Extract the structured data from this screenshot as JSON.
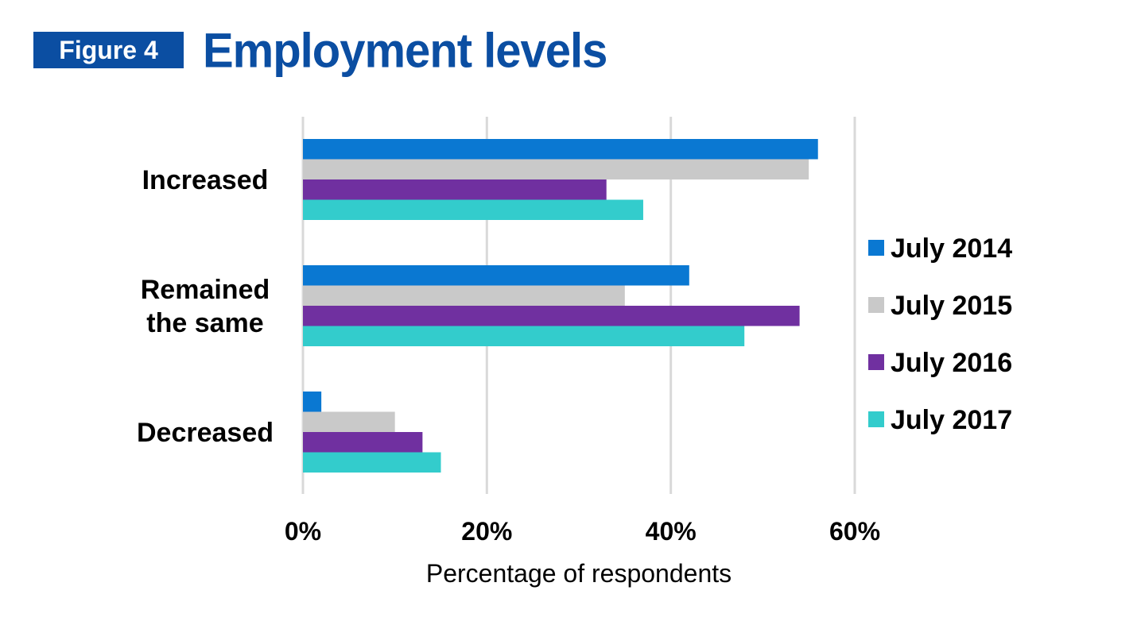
{
  "header": {
    "figure_label": "Figure 4",
    "title": "Employment levels"
  },
  "chart_data": {
    "type": "bar",
    "orientation": "horizontal",
    "title": "Employment levels",
    "xlabel": "Percentage of respondents",
    "ylabel": "",
    "xlim": [
      0,
      60
    ],
    "x_ticks": [
      "0%",
      "20%",
      "40%",
      "60%"
    ],
    "grid": "vertical",
    "legend_position": "right",
    "categories": [
      "Increased",
      "Remained the same",
      "Decreased"
    ],
    "category_label_lines": [
      [
        "Increased"
      ],
      [
        "Remained",
        "the same"
      ],
      [
        "Decreased"
      ]
    ],
    "series": [
      {
        "name": "July 2014",
        "color": "#0a78d2",
        "values": [
          56,
          42,
          2
        ]
      },
      {
        "name": "July 2015",
        "color": "#c9c9c9",
        "values": [
          55,
          35,
          10
        ]
      },
      {
        "name": "July 2016",
        "color": "#7030a0",
        "values": [
          33,
          54,
          13
        ]
      },
      {
        "name": "July 2017",
        "color": "#33cccc",
        "values": [
          37,
          48,
          15
        ]
      }
    ]
  }
}
